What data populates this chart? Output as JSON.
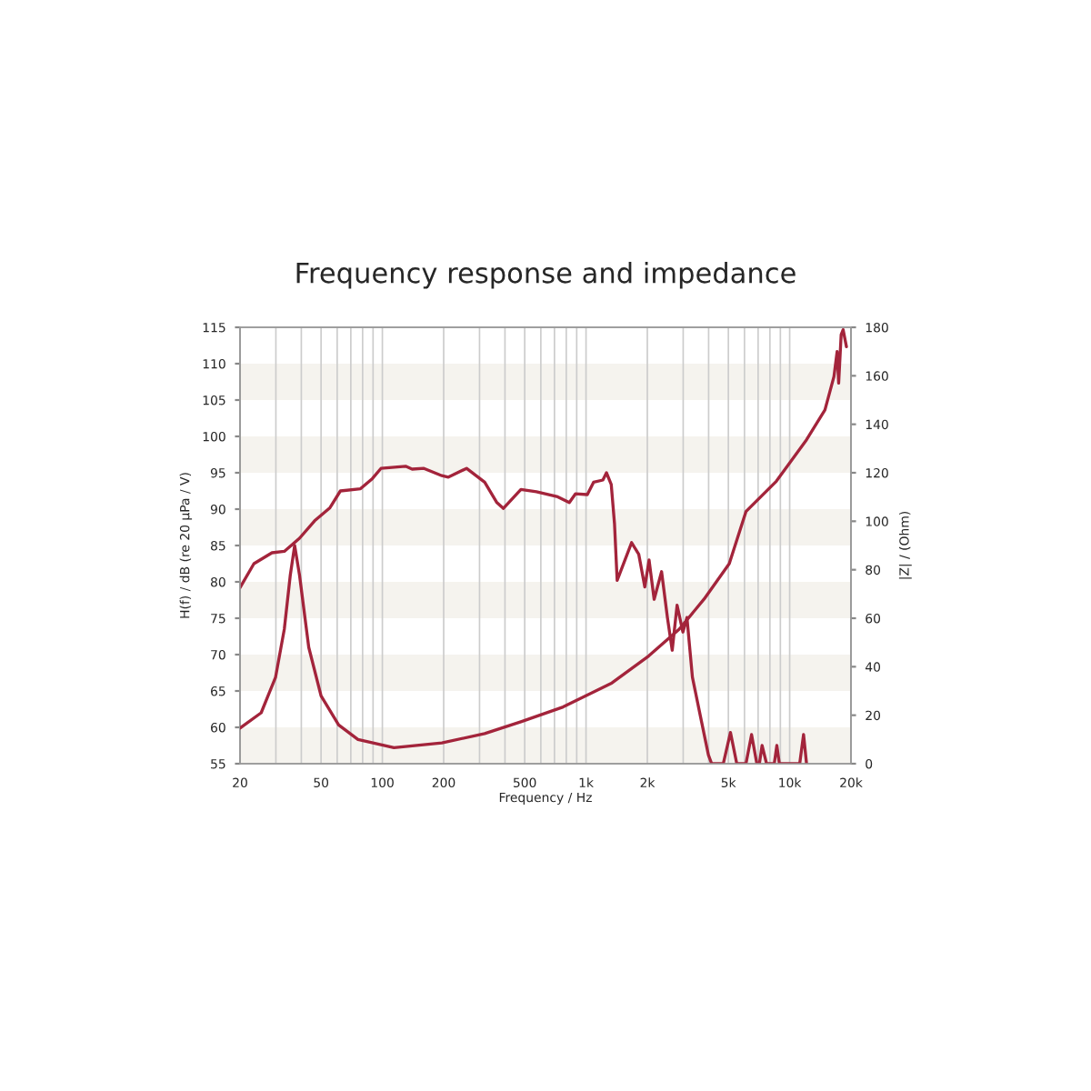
{
  "chart_data": {
    "type": "line",
    "title": "Frequency response and impedance",
    "xlabel": "Frequency / Hz",
    "ylabel": "H(f) / dB (re 20 µPa / V)",
    "y2label": "|Z| / (Ohm)",
    "log": "x",
    "grid": "x",
    "legend": false,
    "marker": "none",
    "line_style": "solid",
    "xlim": [
      20,
      20000
    ],
    "xticks": [
      20,
      {
        "value": 30,
        "label": null
      },
      {
        "value": 40,
        "label": null
      },
      50,
      {
        "value": 60,
        "label": null
      },
      {
        "value": 70,
        "label": null
      },
      {
        "value": 80,
        "label": null
      },
      {
        "value": 90,
        "label": null
      },
      100,
      200,
      {
        "value": 300,
        "label": null
      },
      {
        "value": 400,
        "label": null
      },
      500,
      {
        "value": 600,
        "label": null
      },
      {
        "value": 700,
        "label": null
      },
      {
        "value": 800,
        "label": null
      },
      {
        "value": 900,
        "label": null
      },
      {
        "value": 1000,
        "label": "1k"
      },
      {
        "value": 2000,
        "label": "2k"
      },
      {
        "value": 3000,
        "label": null
      },
      {
        "value": 4000,
        "label": null
      },
      {
        "value": 5000,
        "label": "5k"
      },
      {
        "value": 6000,
        "label": null
      },
      {
        "value": 7000,
        "label": null
      },
      {
        "value": 8000,
        "label": null
      },
      {
        "value": 9000,
        "label": null
      },
      {
        "value": 10000,
        "label": "10k"
      },
      {
        "value": 20000,
        "label": "20k"
      }
    ],
    "ylim": [
      55,
      115
    ],
    "yticks": [
      55,
      60,
      65,
      70,
      75,
      80,
      85,
      90,
      95,
      100,
      105,
      110,
      115
    ],
    "y2lim": [
      0,
      180
    ],
    "y2ticks": [
      0,
      20,
      40,
      60,
      80,
      100,
      120,
      140,
      160,
      180
    ],
    "bands": [
      {
        "axis": "y",
        "from": 55,
        "to": 60,
        "color": "#f5f3ee"
      },
      {
        "axis": "y",
        "from": 65,
        "to": 70,
        "color": "#f5f3ee"
      },
      {
        "axis": "y",
        "from": 75,
        "to": 80,
        "color": "#f5f3ee"
      },
      {
        "axis": "y",
        "from": 85,
        "to": 90,
        "color": "#f5f3ee"
      },
      {
        "axis": "y",
        "from": 95,
        "to": 100,
        "color": "#f5f3ee"
      },
      {
        "axis": "y",
        "from": 105,
        "to": 110,
        "color": "#f5f3ee"
      }
    ],
    "series": [
      {
        "color": "#a3243b",
        "x": [
          20,
          23.4,
          28.7,
          33,
          39.2,
          46.5,
          55.3,
          62.2,
          78.1,
          89.3,
          98.4,
          130,
          140,
          160,
          196,
          211,
          259,
          318,
          365,
          393,
          479,
          571,
          726,
          828,
          887,
          1015,
          1089,
          1210,
          1260,
          1330,
          1380,
          1422,
          1674,
          1815,
          1944,
          2040,
          2160,
          2350,
          2510,
          2650,
          2800,
          2990,
          3130,
          3330,
          3640,
          3990,
          4140,
          4720,
          5120,
          5500,
          6100,
          6500,
          6900,
          7100,
          7320,
          7700,
          8400,
          8650,
          8900,
          11200,
          11700,
          12100
        ],
        "values": [
          79.2,
          82.5,
          84,
          84.2,
          86,
          88.4,
          90.2,
          92.5,
          92.8,
          94.2,
          95.6,
          95.9,
          95.5,
          95.6,
          94.6,
          94.4,
          95.6,
          93.7,
          90.9,
          90.1,
          92.7,
          92.4,
          91.7,
          90.9,
          92.1,
          92,
          93.7,
          94,
          95,
          93.4,
          88,
          80.2,
          85.4,
          83.8,
          79.3,
          83,
          77.6,
          81.4,
          75.1,
          70.6,
          76.8,
          73.1,
          75.1,
          66.9,
          61.6,
          56.2,
          55,
          55,
          59.3,
          55,
          55,
          59,
          55,
          55,
          57.5,
          55,
          55,
          57.5,
          55,
          55,
          59,
          55
        ]
      },
      {
        "color": "#a3243b",
        "axis": "y2",
        "x": [
          20,
          25.4,
          29.9,
          33,
          35.3,
          37.1,
          39.2,
          43.5,
          50,
          61,
          75.9,
          114,
          196,
          318,
          479,
          772,
          1340,
          2030,
          2870,
          3800,
          5050,
          6100,
          8600,
          12100,
          14900,
          16500,
          17100,
          17400,
          17900,
          18300,
          19000
        ],
        "values": [
          14.7,
          21,
          35.7,
          55.5,
          77.7,
          90,
          77.7,
          48,
          28,
          16,
          10,
          6.6,
          8.6,
          12.4,
          17.3,
          23.4,
          33.3,
          44.4,
          55.5,
          67.9,
          82.5,
          104,
          116.5,
          133.6,
          145.9,
          159.7,
          170,
          157,
          177,
          179,
          172
        ]
      }
    ]
  }
}
